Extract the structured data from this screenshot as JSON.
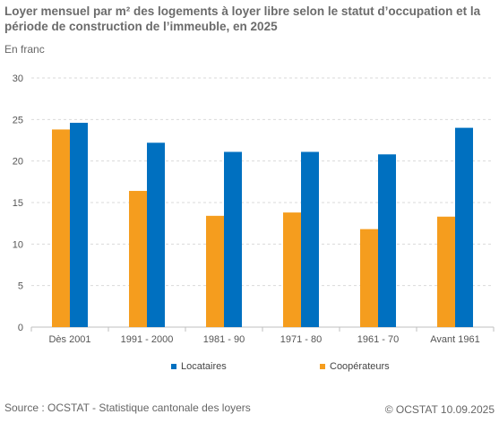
{
  "title": "Loyer mensuel par m² des logements à loyer libre selon le statut d’occupation et la période de construction de l’immeuble, en 2025",
  "unit_label": "En franc",
  "source": "Source : OCSTAT - Statistique cantonale des loyers",
  "copyright": "© OCSTAT 10.09.2025",
  "colors": {
    "locataires": "#0070c0",
    "cooperateurs": "#f59d1e",
    "grid": "#d9d9d9",
    "axis": "#bfbfbf"
  },
  "chart_data": {
    "type": "bar",
    "title": "Loyer mensuel par m² des logements à loyer libre selon le statut d’occupation et la période de construction de l’immeuble, en 2025",
    "ylabel": "En franc",
    "xlabel": "",
    "ylim": [
      0,
      30
    ],
    "yticks": [
      0,
      5,
      10,
      15,
      20,
      25,
      30
    ],
    "grid": true,
    "legend_position": "bottom",
    "categories": [
      "Dès 2001",
      "1991 - 2000",
      "1981 - 90",
      "1971 - 80",
      "1961 - 70",
      "Avant 1961"
    ],
    "series": [
      {
        "name": "Coopérateurs",
        "color": "#f59d1e",
        "values": [
          23.8,
          16.4,
          13.4,
          13.8,
          11.8,
          13.3
        ]
      },
      {
        "name": "Locataires",
        "color": "#0070c0",
        "values": [
          24.6,
          22.2,
          21.1,
          21.1,
          20.8,
          24.0
        ]
      }
    ],
    "legend_order": [
      "Locataires",
      "Coopérateurs"
    ]
  }
}
